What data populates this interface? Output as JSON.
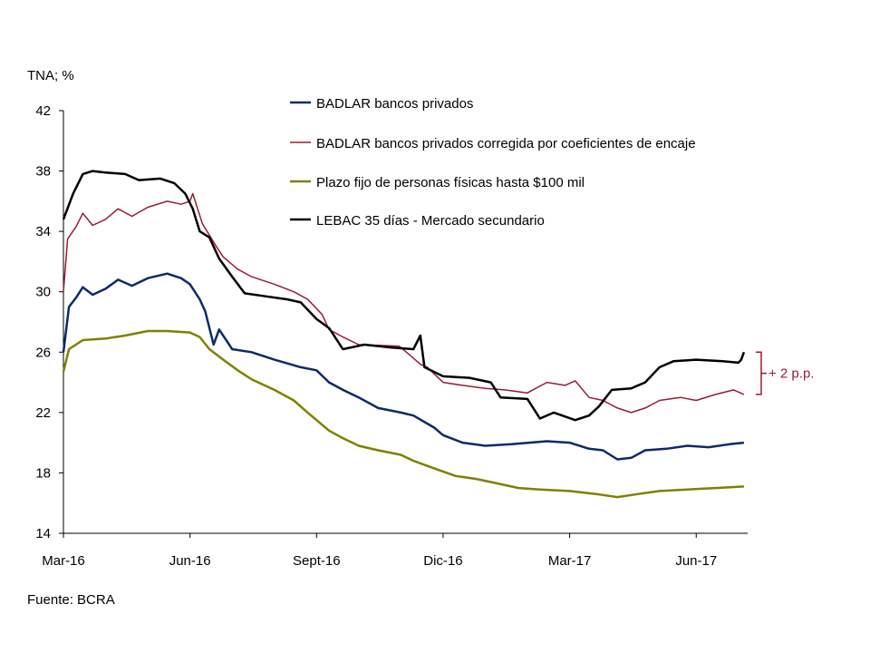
{
  "chart_data": {
    "type": "line",
    "ylabel": "TNA; %",
    "ylim": [
      14,
      42
    ],
    "yticks": [
      "14",
      "18",
      "22",
      "26",
      "30",
      "34",
      "38",
      "42"
    ],
    "xticks": [
      {
        "date": "2016-03-01",
        "label": "Mar-16"
      },
      {
        "date": "2016-06-01",
        "label": "Jun-16"
      },
      {
        "date": "2016-09-01",
        "label": "Sept-16"
      },
      {
        "date": "2016-12-01",
        "label": "Dic-16"
      },
      {
        "date": "2017-03-01",
        "label": "Mar-17"
      },
      {
        "date": "2017-06-01",
        "label": "Jun-17"
      }
    ],
    "grid": false,
    "legend_placement": "top-center",
    "source": "Fuente: BCRA",
    "annotation": {
      "label": "+ 2 p.p.",
      "from": 23.2,
      "to": 26.0,
      "color": "#9b1b34"
    },
    "series": [
      {
        "name": "BADLAR bancos privados",
        "color": "#0d2a6b",
        "points": [
          [
            "2016-03-01",
            26
          ],
          [
            "2016-03-05",
            29
          ],
          [
            "2016-03-10",
            29.6
          ],
          [
            "2016-03-15",
            30.3
          ],
          [
            "2016-03-22",
            29.8
          ],
          [
            "2016-04-01",
            30.2
          ],
          [
            "2016-04-10",
            30.8
          ],
          [
            "2016-04-20",
            30.4
          ],
          [
            "2016-05-01",
            30.9
          ],
          [
            "2016-05-15",
            31.2
          ],
          [
            "2016-05-25",
            30.9
          ],
          [
            "2016-06-01",
            30.5
          ],
          [
            "2016-06-08",
            29.5
          ],
          [
            "2016-06-12",
            28.7
          ],
          [
            "2016-06-18",
            26.5
          ],
          [
            "2016-06-22",
            27.5
          ],
          [
            "2016-07-01",
            26.2
          ],
          [
            "2016-07-15",
            26
          ],
          [
            "2016-08-01",
            25.5
          ],
          [
            "2016-08-20",
            25
          ],
          [
            "2016-09-01",
            24.8
          ],
          [
            "2016-09-10",
            24
          ],
          [
            "2016-09-20",
            23.5
          ],
          [
            "2016-10-01",
            23
          ],
          [
            "2016-10-15",
            22.3
          ],
          [
            "2016-11-01",
            22
          ],
          [
            "2016-11-10",
            21.8
          ],
          [
            "2016-11-25",
            21
          ],
          [
            "2016-12-01",
            20.5
          ],
          [
            "2016-12-15",
            20
          ],
          [
            "2017-01-01",
            19.8
          ],
          [
            "2017-01-20",
            19.9
          ],
          [
            "2017-02-15",
            20.1
          ],
          [
            "2017-03-01",
            20
          ],
          [
            "2017-03-15",
            19.6
          ],
          [
            "2017-03-25",
            19.5
          ],
          [
            "2017-04-05",
            18.9
          ],
          [
            "2017-04-15",
            19
          ],
          [
            "2017-04-25",
            19.5
          ],
          [
            "2017-05-10",
            19.6
          ],
          [
            "2017-05-25",
            19.8
          ],
          [
            "2017-06-10",
            19.7
          ],
          [
            "2017-06-25",
            19.9
          ],
          [
            "2017-07-05",
            20
          ]
        ]
      },
      {
        "name": "BADLAR bancos privados corregida por coeficientes de encaje",
        "color": "#9b1b34",
        "points": [
          [
            "2016-03-01",
            30
          ],
          [
            "2016-03-04",
            33.5
          ],
          [
            "2016-03-10",
            34.3
          ],
          [
            "2016-03-15",
            35.2
          ],
          [
            "2016-03-22",
            34.4
          ],
          [
            "2016-04-01",
            34.8
          ],
          [
            "2016-04-10",
            35.5
          ],
          [
            "2016-04-20",
            35
          ],
          [
            "2016-05-01",
            35.6
          ],
          [
            "2016-05-15",
            36
          ],
          [
            "2016-05-25",
            35.8
          ],
          [
            "2016-06-01",
            36
          ],
          [
            "2016-06-03",
            36.5
          ],
          [
            "2016-06-10",
            34.5
          ],
          [
            "2016-06-20",
            33
          ],
          [
            "2016-06-25",
            32.3
          ],
          [
            "2016-07-05",
            31.5
          ],
          [
            "2016-07-15",
            31
          ],
          [
            "2016-08-01",
            30.5
          ],
          [
            "2016-08-15",
            30
          ],
          [
            "2016-08-25",
            29.5
          ],
          [
            "2016-09-05",
            28.5
          ],
          [
            "2016-09-10",
            27.5
          ],
          [
            "2016-09-20",
            27
          ],
          [
            "2016-10-01",
            26.5
          ],
          [
            "2016-10-30",
            26.4
          ],
          [
            "2016-11-05",
            26
          ],
          [
            "2016-11-15",
            25.2
          ],
          [
            "2016-11-20",
            25
          ],
          [
            "2016-12-01",
            24
          ],
          [
            "2016-12-15",
            23.8
          ],
          [
            "2017-01-01",
            23.6
          ],
          [
            "2017-01-15",
            23.5
          ],
          [
            "2017-02-01",
            23.3
          ],
          [
            "2017-02-15",
            24
          ],
          [
            "2017-02-28",
            23.8
          ],
          [
            "2017-03-05",
            24.1
          ],
          [
            "2017-03-15",
            23
          ],
          [
            "2017-03-25",
            22.8
          ],
          [
            "2017-04-05",
            22.3
          ],
          [
            "2017-04-15",
            22
          ],
          [
            "2017-04-25",
            22.3
          ],
          [
            "2017-05-05",
            22.8
          ],
          [
            "2017-05-20",
            23
          ],
          [
            "2017-06-01",
            22.8
          ],
          [
            "2017-06-15",
            23.2
          ],
          [
            "2017-06-28",
            23.5
          ],
          [
            "2017-07-05",
            23.2
          ]
        ]
      },
      {
        "name": "Plazo fijo de personas físicas hasta $100 mil",
        "color": "#808000",
        "points": [
          [
            "2016-03-01",
            24.7
          ],
          [
            "2016-03-05",
            26.2
          ],
          [
            "2016-03-15",
            26.8
          ],
          [
            "2016-04-01",
            26.9
          ],
          [
            "2016-04-15",
            27.1
          ],
          [
            "2016-05-01",
            27.4
          ],
          [
            "2016-05-15",
            27.4
          ],
          [
            "2016-06-01",
            27.3
          ],
          [
            "2016-06-08",
            27
          ],
          [
            "2016-06-15",
            26.2
          ],
          [
            "2016-06-25",
            25.5
          ],
          [
            "2016-07-05",
            24.8
          ],
          [
            "2016-07-15",
            24.2
          ],
          [
            "2016-08-01",
            23.5
          ],
          [
            "2016-08-15",
            22.8
          ],
          [
            "2016-08-25",
            22
          ],
          [
            "2016-09-01",
            21.5
          ],
          [
            "2016-09-10",
            20.8
          ],
          [
            "2016-09-20",
            20.3
          ],
          [
            "2016-10-01",
            19.8
          ],
          [
            "2016-10-15",
            19.5
          ],
          [
            "2016-11-01",
            19.2
          ],
          [
            "2016-11-10",
            18.8
          ],
          [
            "2016-11-25",
            18.3
          ],
          [
            "2016-12-10",
            17.8
          ],
          [
            "2016-12-25",
            17.6
          ],
          [
            "2017-01-10",
            17.3
          ],
          [
            "2017-01-25",
            17
          ],
          [
            "2017-02-10",
            16.9
          ],
          [
            "2017-03-01",
            16.8
          ],
          [
            "2017-03-20",
            16.6
          ],
          [
            "2017-04-05",
            16.4
          ],
          [
            "2017-04-20",
            16.6
          ],
          [
            "2017-05-05",
            16.8
          ],
          [
            "2017-05-25",
            16.9
          ],
          [
            "2017-06-15",
            17
          ],
          [
            "2017-07-05",
            17.1
          ]
        ]
      },
      {
        "name": "LEBAC 35 días - Mercado secundario",
        "color": "#000000",
        "points": [
          [
            "2016-03-01",
            34.8
          ],
          [
            "2016-03-08",
            36.5
          ],
          [
            "2016-03-15",
            37.8
          ],
          [
            "2016-03-22",
            38
          ],
          [
            "2016-04-01",
            37.9
          ],
          [
            "2016-04-15",
            37.8
          ],
          [
            "2016-04-25",
            37.4
          ],
          [
            "2016-05-10",
            37.5
          ],
          [
            "2016-05-20",
            37.2
          ],
          [
            "2016-05-28",
            36.5
          ],
          [
            "2016-06-03",
            35.5
          ],
          [
            "2016-06-08",
            34
          ],
          [
            "2016-06-15",
            33.6
          ],
          [
            "2016-06-22",
            32.2
          ],
          [
            "2016-07-01",
            31
          ],
          [
            "2016-07-10",
            29.9
          ],
          [
            "2016-07-25",
            29.7
          ],
          [
            "2016-08-10",
            29.5
          ],
          [
            "2016-08-20",
            29.3
          ],
          [
            "2016-09-01",
            28.2
          ],
          [
            "2016-09-10",
            27.6
          ],
          [
            "2016-09-20",
            26.2
          ],
          [
            "2016-10-05",
            26.5
          ],
          [
            "2016-10-25",
            26.3
          ],
          [
            "2016-11-10",
            26.2
          ],
          [
            "2016-11-15",
            27.1
          ],
          [
            "2016-11-18",
            25
          ],
          [
            "2016-12-01",
            24.4
          ],
          [
            "2016-12-20",
            24.3
          ],
          [
            "2017-01-05",
            24
          ],
          [
            "2017-01-12",
            23
          ],
          [
            "2017-02-01",
            22.9
          ],
          [
            "2017-02-10",
            21.6
          ],
          [
            "2017-02-20",
            22
          ],
          [
            "2017-03-05",
            21.5
          ],
          [
            "2017-03-15",
            21.8
          ],
          [
            "2017-03-22",
            22.4
          ],
          [
            "2017-04-01",
            23.5
          ],
          [
            "2017-04-15",
            23.6
          ],
          [
            "2017-04-25",
            24
          ],
          [
            "2017-05-05",
            25
          ],
          [
            "2017-05-15",
            25.4
          ],
          [
            "2017-06-01",
            25.5
          ],
          [
            "2017-06-20",
            25.4
          ],
          [
            "2017-07-01",
            25.3
          ],
          [
            "2017-07-03",
            25.5
          ],
          [
            "2017-07-05",
            26
          ]
        ]
      }
    ]
  }
}
